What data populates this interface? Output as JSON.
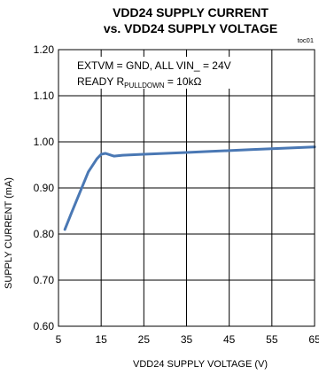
{
  "chart_data": {
    "type": "line",
    "title_line1": "VDD24 SUPPLY CURRENT",
    "title_line2": "vs. VDD24 SUPPLY VOLTAGE",
    "figure_id": "toc01",
    "xlabel": "VDD24 SUPPLY VOLTAGE (V)",
    "ylabel": "SUPPLY CURRENT (mA)",
    "xlim": [
      5,
      65
    ],
    "ylim": [
      0.6,
      1.2
    ],
    "x_ticks": [
      "5",
      "15",
      "25",
      "35",
      "45",
      "55",
      "65"
    ],
    "y_ticks": [
      "0.60",
      "0.70",
      "0.80",
      "0.90",
      "1.00",
      "1.10",
      "1.20"
    ],
    "grid": true,
    "annotations": {
      "line1": "EXTVM = GND, ALL VIN_ = 24V",
      "line2_prefix": "READY R",
      "line2_sub": "PULLDOWN",
      "line2_suffix": " = 10kΩ"
    },
    "series": [
      {
        "color": "#4a78b4",
        "x": [
          6.5,
          8,
          10,
          12,
          14,
          15,
          16,
          17,
          18,
          19,
          20,
          25,
          30,
          35,
          40,
          45,
          50,
          55,
          60,
          65
        ],
        "y": [
          0.81,
          0.845,
          0.89,
          0.935,
          0.963,
          0.973,
          0.975,
          0.972,
          0.969,
          0.97,
          0.971,
          0.973,
          0.975,
          0.977,
          0.979,
          0.981,
          0.983,
          0.985,
          0.987,
          0.989
        ]
      }
    ]
  }
}
